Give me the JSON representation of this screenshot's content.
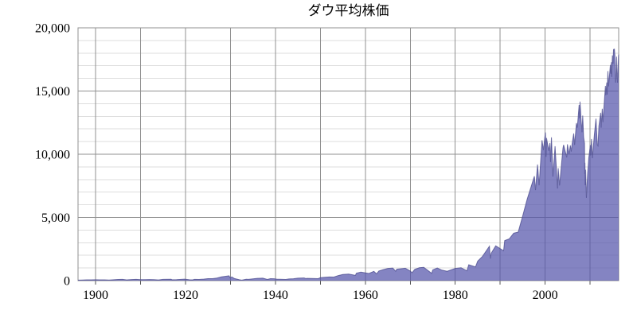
{
  "title": "ダウ平均株価",
  "chart_data": {
    "type": "area",
    "title": "ダウ平均株価",
    "legend": false,
    "grid": true,
    "x_axis": {
      "range": [
        1896.1,
        2016.35
      ],
      "gridlines": [
        1900,
        1910,
        1920,
        1930,
        1940,
        1950,
        1960,
        1970,
        1980,
        1990,
        2000,
        2010
      ],
      "tick_values": [
        1900,
        1920,
        1940,
        1960,
        1980,
        2000
      ],
      "tick_labels": [
        "1900",
        "1920",
        "1940",
        "1960",
        "1980",
        "2000"
      ]
    },
    "y_axis": {
      "range": [
        0,
        20000
      ],
      "major_ticks": [
        0,
        5000,
        10000,
        15000,
        20000
      ],
      "tick_labels": [
        "0",
        "5,000",
        "10,000",
        "15,000",
        "20,000"
      ],
      "minor_step": 1000
    },
    "colors": {
      "fill": "#5555aa",
      "fill_opacity": 0.72,
      "line": "#48488c",
      "grid_major": "#909090",
      "grid_minor": "#dedede",
      "frame": "#909090",
      "tick": "#555555",
      "text": "#000000",
      "background": "#ffffff"
    },
    "points": [
      [
        1896.1,
        40
      ],
      [
        1897,
        49
      ],
      [
        1898,
        60
      ],
      [
        1899,
        66
      ],
      [
        1900,
        68
      ],
      [
        1901,
        65
      ],
      [
        1902,
        64
      ],
      [
        1903,
        49
      ],
      [
        1904,
        70
      ],
      [
        1905,
        96
      ],
      [
        1906,
        99
      ],
      [
        1907,
        59
      ],
      [
        1908,
        86
      ],
      [
        1909,
        99
      ],
      [
        1910,
        82
      ],
      [
        1911,
        82
      ],
      [
        1912,
        88
      ],
      [
        1913,
        78
      ],
      [
        1914,
        54
      ],
      [
        1915,
        99
      ],
      [
        1916.8,
        110
      ],
      [
        1917,
        74
      ],
      [
        1918,
        82
      ],
      [
        1919.8,
        119
      ],
      [
        1920.9,
        67
      ],
      [
        1921.6,
        64
      ],
      [
        1922,
        99
      ],
      [
        1923,
        96
      ],
      [
        1924,
        120
      ],
      [
        1925,
        157
      ],
      [
        1926,
        157
      ],
      [
        1927,
        202
      ],
      [
        1928,
        300
      ],
      [
        1929.7,
        381
      ],
      [
        1929.9,
        230
      ],
      [
        1930.3,
        294
      ],
      [
        1930.9,
        165
      ],
      [
        1931.9,
        78
      ],
      [
        1932.5,
        41
      ],
      [
        1933.5,
        108
      ],
      [
        1934,
        104
      ],
      [
        1935,
        144
      ],
      [
        1936,
        180
      ],
      [
        1937.2,
        194
      ],
      [
        1938.2,
        99
      ],
      [
        1938.9,
        155
      ],
      [
        1939.7,
        150
      ],
      [
        1940.4,
        112
      ],
      [
        1941,
        111
      ],
      [
        1942.3,
        93
      ],
      [
        1943,
        136
      ],
      [
        1944,
        152
      ],
      [
        1945,
        193
      ],
      [
        1946.4,
        213
      ],
      [
        1946.8,
        163
      ],
      [
        1947,
        181
      ],
      [
        1948,
        177
      ],
      [
        1949.5,
        161
      ],
      [
        1950,
        235
      ],
      [
        1951,
        269
      ],
      [
        1952,
        292
      ],
      [
        1953,
        281
      ],
      [
        1954,
        404
      ],
      [
        1955,
        488
      ],
      [
        1956.3,
        521
      ],
      [
        1957.8,
        420
      ],
      [
        1958,
        584
      ],
      [
        1959,
        679
      ],
      [
        1960.8,
        566
      ],
      [
        1961.9,
        735
      ],
      [
        1962.5,
        536
      ],
      [
        1963,
        763
      ],
      [
        1964,
        874
      ],
      [
        1965,
        969
      ],
      [
        1966.1,
        995
      ],
      [
        1966.75,
        744
      ],
      [
        1967,
        905
      ],
      [
        1968.9,
        985
      ],
      [
        1969.95,
        769
      ],
      [
        1970.4,
        631
      ],
      [
        1971,
        890
      ],
      [
        1972,
        1020
      ],
      [
        1973,
        1052
      ],
      [
        1974.75,
        578
      ],
      [
        1975,
        852
      ],
      [
        1976,
        1005
      ],
      [
        1977,
        831
      ],
      [
        1978.2,
        742
      ],
      [
        1979,
        839
      ],
      [
        1980,
        964
      ],
      [
        1981.3,
        1024
      ],
      [
        1982.6,
        777
      ],
      [
        1983,
        1259
      ],
      [
        1984.5,
        1087
      ],
      [
        1985,
        1547
      ],
      [
        1986,
        1896
      ],
      [
        1987.6,
        2722
      ],
      [
        1987.8,
        1739
      ],
      [
        1988,
        2169
      ],
      [
        1989,
        2753
      ],
      [
        1990.75,
        2365
      ],
      [
        1991,
        3169
      ],
      [
        1992,
        3301
      ],
      [
        1993,
        3754
      ],
      [
        1994,
        3834
      ],
      [
        1995,
        5117
      ],
      [
        1996,
        6448
      ],
      [
        1997.6,
        8259
      ],
      [
        1997.85,
        7161
      ],
      [
        1998.3,
        9184
      ],
      [
        1998.65,
        7539
      ],
      [
        1999.3,
        11107
      ],
      [
        1999.6,
        10334
      ],
      [
        2000.05,
        11723
      ],
      [
        2000.2,
        9796
      ],
      [
        2000.3,
        11287
      ],
      [
        2000.8,
        10271
      ],
      [
        2001.05,
        10887
      ],
      [
        2001.2,
        9389
      ],
      [
        2001.4,
        11337
      ],
      [
        2001.72,
        8236
      ],
      [
        2002.2,
        10635
      ],
      [
        2002.75,
        7286
      ],
      [
        2002.9,
        8896
      ],
      [
        2003.2,
        7524
      ],
      [
        2003.95,
        10454
      ],
      [
        2004.1,
        10738
      ],
      [
        2004.8,
        9749
      ],
      [
        2004.95,
        10783
      ],
      [
        2005.3,
        10012
      ],
      [
        2005.6,
        10706
      ],
      [
        2005.8,
        10215
      ],
      [
        2005.95,
        10718
      ],
      [
        2006.35,
        11643
      ],
      [
        2006.55,
        10739
      ],
      [
        2006.95,
        12463
      ],
      [
        2007.15,
        12100
      ],
      [
        2007.55,
        13896
      ],
      [
        2007.62,
        12846
      ],
      [
        2007.75,
        14165
      ],
      [
        2008,
        12650
      ],
      [
        2008.2,
        11740
      ],
      [
        2008.35,
        13058
      ],
      [
        2008.55,
        11350
      ],
      [
        2008.75,
        10851
      ],
      [
        2008.8,
        8451
      ],
      [
        2008.85,
        9325
      ],
      [
        2008.9,
        7552
      ],
      [
        2009,
        8776
      ],
      [
        2009.17,
        6547
      ],
      [
        2009.45,
        8500
      ],
      [
        2009.7,
        9712
      ],
      [
        2009.95,
        10428
      ],
      [
        2010.05,
        10725
      ],
      [
        2010.12,
        9908
      ],
      [
        2010.3,
        11205
      ],
      [
        2010.5,
        9686
      ],
      [
        2010.95,
        11578
      ],
      [
        2011.3,
        12811
      ],
      [
        2011.6,
        10720
      ],
      [
        2011.75,
        10655
      ],
      [
        2011.95,
        12218
      ],
      [
        2012.35,
        13279
      ],
      [
        2012.45,
        12101
      ],
      [
        2012.7,
        13596
      ],
      [
        2012.85,
        12542
      ],
      [
        2013.1,
        13860
      ],
      [
        2013.4,
        15409
      ],
      [
        2013.48,
        14660
      ],
      [
        2013.7,
        15676
      ],
      [
        2013.78,
        14719
      ],
      [
        2013.95,
        16577
      ],
      [
        2014.1,
        15373
      ],
      [
        2014.5,
        17068
      ],
      [
        2014.6,
        16368
      ],
      [
        2014.73,
        17280
      ],
      [
        2014.8,
        16117
      ],
      [
        2014.95,
        17823
      ],
      [
        2015.1,
        17164
      ],
      [
        2015.2,
        18289
      ],
      [
        2015.4,
        18312
      ],
      [
        2015.55,
        17596
      ],
      [
        2015.65,
        15666
      ],
      [
        2015.78,
        16002
      ],
      [
        2015.9,
        17720
      ],
      [
        2016.05,
        15988
      ],
      [
        2016.1,
        15660
      ],
      [
        2016.2,
        16453
      ],
      [
        2016.3,
        17700
      ],
      [
        2016.35,
        17891
      ]
    ]
  }
}
